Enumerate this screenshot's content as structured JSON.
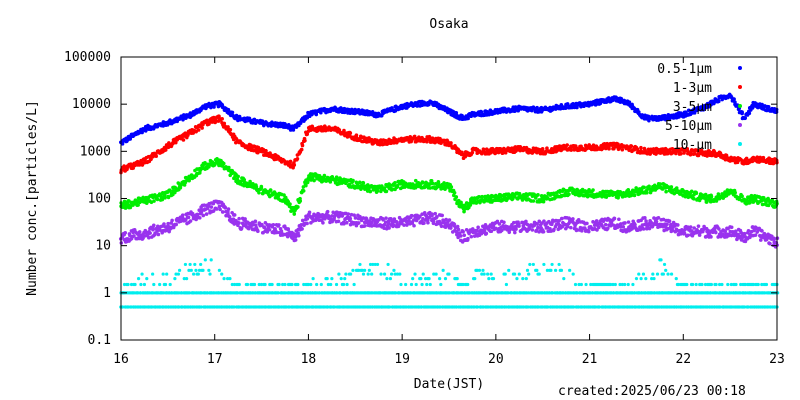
{
  "created_label": "created:2025/06/23 00:18",
  "chart_data": {
    "type": "scatter",
    "title": "Osaka",
    "xlabel": "Date(JST)",
    "ylabel": "Number conc.[particles/L]",
    "xlim": [
      16,
      23
    ],
    "ylim": [
      0.1,
      100000
    ],
    "yscale": "log",
    "grid": false,
    "legend_position": "top-right",
    "x_ticks": [
      "16",
      "17",
      "18",
      "19",
      "20",
      "21",
      "22",
      "23"
    ],
    "y_ticks": [
      "100000",
      "10000",
      "1000",
      "100",
      "10",
      "1",
      "0.1"
    ],
    "x_tick_values": [
      16,
      17,
      18,
      19,
      20,
      21,
      22,
      23
    ],
    "y_tick_values": [
      100000,
      10000,
      1000,
      100,
      10,
      1,
      0.1
    ],
    "x": [
      16.0,
      16.25,
      16.5,
      16.75,
      16.9,
      17.05,
      17.25,
      17.5,
      17.75,
      17.85,
      18.0,
      18.25,
      18.5,
      18.75,
      19.0,
      19.3,
      19.5,
      19.65,
      19.75,
      20.0,
      20.25,
      20.5,
      20.75,
      21.0,
      21.25,
      21.4,
      21.6,
      21.75,
      22.0,
      22.25,
      22.35,
      22.5,
      22.65,
      22.75,
      23.0
    ],
    "series": [
      {
        "name": "0.5-1μm",
        "color": "#0000ff",
        "values": [
          1500,
          3000,
          4000,
          6000,
          9000,
          10000,
          5000,
          4000,
          3500,
          3000,
          6000,
          8000,
          7000,
          6000,
          9000,
          11000,
          7000,
          5000,
          6000,
          7000,
          8000,
          7500,
          9000,
          10000,
          13000,
          11000,
          5000,
          5000,
          6000,
          9000,
          12000,
          16000,
          5000,
          10000,
          7000
        ]
      },
      {
        "name": "1-3μm",
        "color": "#ff0000",
        "values": [
          400,
          600,
          1300,
          2500,
          4000,
          5000,
          1500,
          1000,
          600,
          500,
          3000,
          3000,
          2000,
          1500,
          1800,
          1800,
          1500,
          800,
          1000,
          1000,
          1100,
          1000,
          1200,
          1200,
          1300,
          1200,
          1000,
          1000,
          1000,
          900,
          900,
          700,
          600,
          700,
          600
        ]
      },
      {
        "name": "3-5μm",
        "color": "#00ee00",
        "values": [
          70,
          90,
          120,
          300,
          500,
          600,
          250,
          150,
          100,
          50,
          300,
          250,
          200,
          150,
          200,
          200,
          180,
          60,
          90,
          100,
          110,
          100,
          140,
          130,
          120,
          130,
          150,
          180,
          130,
          100,
          100,
          150,
          90,
          100,
          75
        ]
      },
      {
        "name": "5-10μm",
        "color": "#9933ee",
        "values": [
          15,
          18,
          25,
          40,
          60,
          70,
          30,
          25,
          20,
          15,
          40,
          40,
          35,
          30,
          30,
          40,
          30,
          15,
          20,
          25,
          25,
          25,
          30,
          25,
          30,
          25,
          30,
          30,
          20,
          20,
          20,
          20,
          15,
          20,
          12
        ]
      },
      {
        "name": "10-μm",
        "color": "#00eeee",
        "values": [
          1,
          1.5,
          1.5,
          2.5,
          3,
          2.5,
          1,
          1,
          1,
          1,
          1,
          1.5,
          2,
          3,
          1.5,
          1.5,
          2,
          1,
          2,
          2,
          2,
          3,
          2,
          1,
          1,
          1,
          2,
          3,
          1,
          1,
          1,
          1,
          1,
          1,
          1
        ]
      }
    ]
  }
}
